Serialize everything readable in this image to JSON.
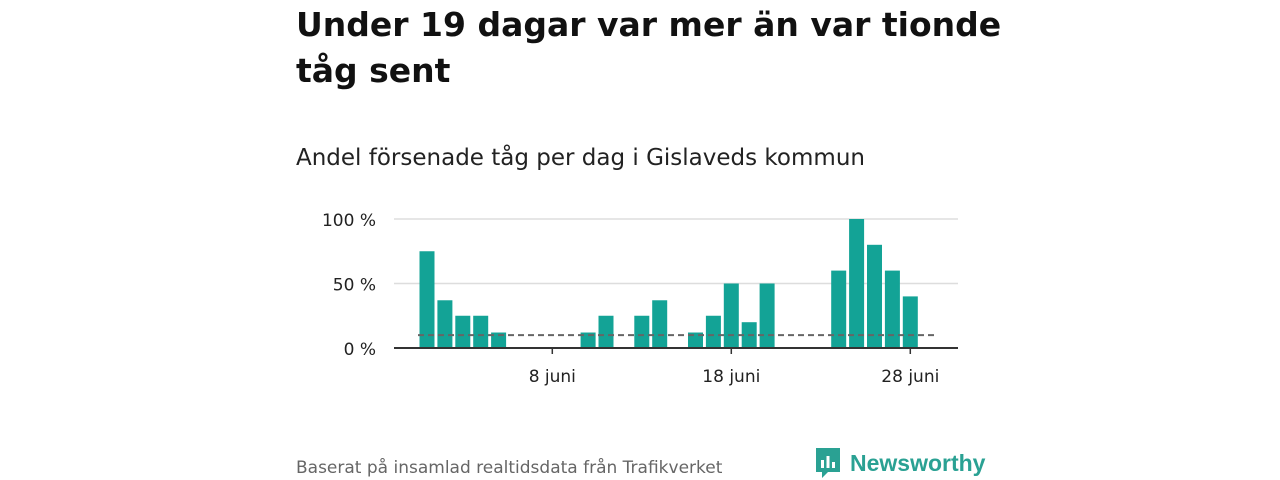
{
  "title": "Under 19 dagar var mer än var tionde tåg sent",
  "subtitle": "Andel försenade tåg per dag i Gislaveds kommun",
  "source": "Baserat på insamlad realtidsdata från Trafikverket",
  "brand": "Newsworthy",
  "colors": {
    "bar": "#13a396",
    "reference": "#666666",
    "grid": "#dddddd",
    "axis": "#333333",
    "brand": "#2aa193"
  },
  "chart_data": {
    "type": "bar",
    "x": [
      1,
      2,
      3,
      4,
      5,
      6,
      7,
      8,
      9,
      10,
      11,
      12,
      13,
      14,
      15,
      16,
      17,
      18,
      19,
      20,
      21,
      22,
      23,
      24,
      25,
      26,
      27,
      28
    ],
    "values": [
      75,
      37,
      25,
      25,
      12,
      0,
      0,
      0,
      0,
      12,
      25,
      0,
      25,
      37,
      0,
      12,
      25,
      50,
      20,
      50,
      0,
      0,
      0,
      60,
      100,
      80,
      60,
      40
    ],
    "unit": "%",
    "ylim": [
      0,
      100
    ],
    "yticks": [
      0,
      50,
      100
    ],
    "ytick_labels": [
      "0 %",
      "50 %",
      "100 %"
    ],
    "xticks": [
      8,
      18,
      28
    ],
    "xtick_labels": [
      "8 juni",
      "18 juni",
      "28 juni"
    ],
    "reference_line": 10,
    "grid": true
  }
}
